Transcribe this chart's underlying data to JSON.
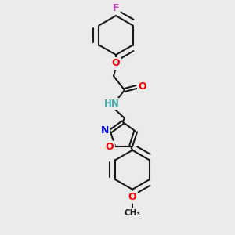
{
  "background_color": "#ebebeb",
  "bond_color": "#1a1a1a",
  "atom_colors": {
    "F": "#cc44cc",
    "O": "#ff0000",
    "N": "#0000ee",
    "H": "#44aaaa",
    "C": "#1a1a1a"
  },
  "figsize": [
    3.0,
    3.0
  ],
  "dpi": 100
}
